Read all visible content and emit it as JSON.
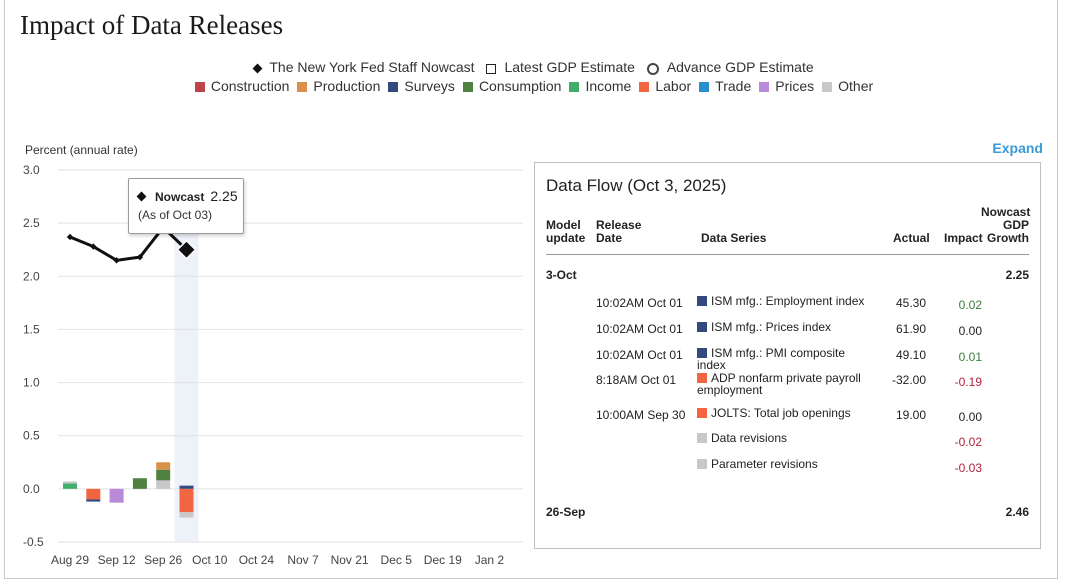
{
  "title": "Impact of Data Releases",
  "legend": {
    "markers": [
      {
        "label": "The New York Fed Staff Nowcast",
        "icon": "diamond-icon"
      },
      {
        "label": "Latest GDP Estimate",
        "icon": "square-outline-icon"
      },
      {
        "label": "Advance GDP Estimate",
        "icon": "circle-outline-icon"
      }
    ],
    "categories": [
      {
        "label": "Construction",
        "color": "#c0444c"
      },
      {
        "label": "Production",
        "color": "#d9914a"
      },
      {
        "label": "Surveys",
        "color": "#344a7e"
      },
      {
        "label": "Consumption",
        "color": "#4f8241"
      },
      {
        "label": "Income",
        "color": "#3fae6b"
      },
      {
        "label": "Labor",
        "color": "#f26540"
      },
      {
        "label": "Trade",
        "color": "#2a8fd0"
      },
      {
        "label": "Prices",
        "color": "#b98ad8"
      },
      {
        "label": "Other",
        "color": "#c8c8c8"
      }
    ]
  },
  "expand_label": "Expand",
  "chart_data": {
    "type": "line",
    "ylabel": "Percent (annual rate)",
    "ylim": [
      -0.5,
      3.0
    ],
    "yticks": [
      "3.0",
      "2.5",
      "2.0",
      "1.5",
      "1.0",
      "0.5",
      "0.0",
      "-0.5"
    ],
    "xticks": [
      "Aug 29",
      "Sep 12",
      "Sep 26",
      "Oct 10",
      "Oct 24",
      "Nov 7",
      "Nov 21",
      "Dec 5",
      "Dec 19",
      "Jan 2"
    ],
    "nowcast": {
      "name": "The New York Fed Staff Nowcast",
      "x": [
        "Aug 29",
        "Sep 5",
        "Sep 12",
        "Sep 19",
        "Sep 26",
        "Oct 3"
      ],
      "y": [
        2.37,
        2.28,
        2.15,
        2.18,
        2.46,
        2.25
      ]
    },
    "bars": [
      {
        "x": "Aug 29",
        "segments": [
          {
            "category": "Income",
            "value": 0.05
          },
          {
            "category": "Other",
            "value": 0.02
          }
        ]
      },
      {
        "x": "Sep 5",
        "segments": [
          {
            "category": "Labor",
            "value": -0.1
          },
          {
            "category": "Surveys",
            "value": -0.02
          }
        ]
      },
      {
        "x": "Sep 12",
        "segments": [
          {
            "category": "Prices",
            "value": -0.13
          }
        ]
      },
      {
        "x": "Sep 19",
        "segments": [
          {
            "category": "Consumption",
            "value": 0.1
          }
        ]
      },
      {
        "x": "Sep 26",
        "segments": [
          {
            "category": "Other",
            "value": 0.08
          },
          {
            "category": "Consumption",
            "value": 0.1
          },
          {
            "category": "Production",
            "value": 0.07
          }
        ]
      },
      {
        "x": "Oct 3",
        "segments": [
          {
            "category": "Surveys",
            "value": 0.03
          },
          {
            "category": "Labor",
            "value": -0.22
          },
          {
            "category": "Other",
            "value": -0.05
          }
        ]
      }
    ],
    "tooltip": {
      "label": "Nowcast",
      "value": "2.25",
      "as_of": "(As of Oct 03)"
    }
  },
  "data_flow": {
    "title": "Data Flow (Oct 3, 2025)",
    "headers": {
      "model_update": "Model update",
      "release_date": "Release Date",
      "series": "Data Series",
      "actual": "Actual",
      "impact": "Impact",
      "growth": "Nowcast GDP Growth"
    },
    "groups": [
      {
        "date": "3-Oct",
        "growth": "2.25"
      },
      {
        "date": "26-Sep",
        "growth": "2.46"
      }
    ],
    "rows": [
      {
        "release": "10:02AM Oct 01",
        "series": "ISM mfg.: Employment index",
        "color": "#344a7e",
        "actual": "45.30",
        "impact": "0.02",
        "sign": "pos"
      },
      {
        "release": "10:02AM Oct 01",
        "series": "ISM mfg.: Prices index",
        "color": "#344a7e",
        "actual": "61.90",
        "impact": "0.00",
        "sign": "zero"
      },
      {
        "release": "10:02AM Oct 01",
        "series": "ISM mfg.: PMI composite index",
        "color": "#344a7e",
        "actual": "49.10",
        "impact": "0.01",
        "sign": "pos"
      },
      {
        "release": "8:18AM Oct 01",
        "series": "ADP nonfarm private payroll employment",
        "color": "#f26540",
        "actual": "-32.00",
        "impact": "-0.19",
        "sign": "neg"
      },
      {
        "release": "10:00AM Sep 30",
        "series": "JOLTS: Total job openings",
        "color": "#f26540",
        "actual": "19.00",
        "impact": "0.00",
        "sign": "zero"
      },
      {
        "release": "",
        "series": "Data revisions",
        "color": "#c8c8c8",
        "actual": "",
        "impact": "-0.02",
        "sign": "neg"
      },
      {
        "release": "",
        "series": "Parameter revisions",
        "color": "#c8c8c8",
        "actual": "",
        "impact": "-0.03",
        "sign": "neg"
      }
    ]
  }
}
